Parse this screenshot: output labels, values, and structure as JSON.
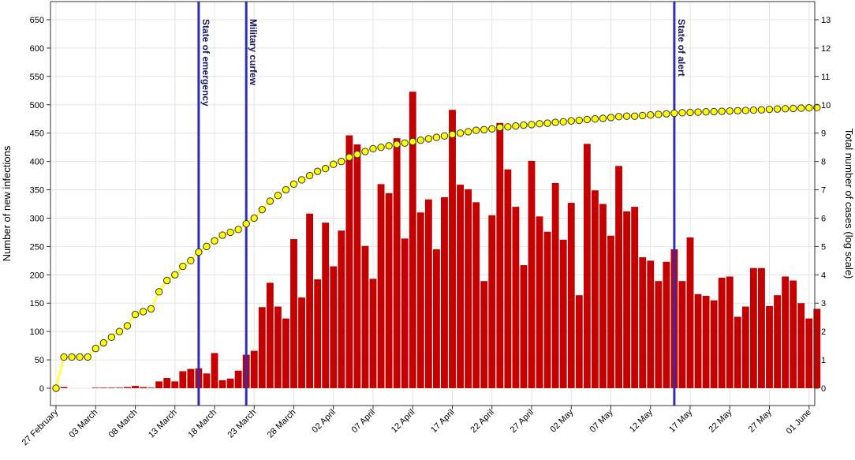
{
  "chart_data": {
    "type": "bar",
    "ylabel_left": "Number of new infections",
    "ylabel_right": "Total number of cases (log scale)",
    "ylim_left": [
      0,
      650
    ],
    "ylim_right": [
      0,
      13
    ],
    "yticks_left": [
      "0",
      "50",
      "100",
      "150",
      "200",
      "250",
      "300",
      "350",
      "400",
      "450",
      "500",
      "550",
      "600",
      "650"
    ],
    "yticks_right": [
      "0",
      "1",
      "2",
      "3",
      "4",
      "5",
      "6",
      "7",
      "8",
      "9",
      "10",
      "11",
      "12",
      "13"
    ],
    "xtick_labels": [
      "27 February",
      "03 March",
      "08 March",
      "13 March",
      "18 March",
      "23 March",
      "28 March",
      "02 April",
      "07 April",
      "12 April",
      "17 April",
      "22 April",
      "27 April",
      "02 May",
      "07 May",
      "12 May",
      "17 May",
      "22 May",
      "27 May",
      "01 June"
    ],
    "grid": true,
    "colors": {
      "bars": "#c40000",
      "cumulative_line": "#ffff4d",
      "cumulative_points": "#ffff00",
      "events": "#2e2eb8"
    },
    "events": [
      {
        "label": "State of emergency",
        "day": 18
      },
      {
        "label": "Military curfew",
        "day": 24
      },
      {
        "label": "State of alert",
        "day": 78
      }
    ],
    "series": [
      {
        "kind": "bar",
        "values": [
          0,
          2,
          0,
          0,
          0,
          1,
          1,
          1,
          1,
          2,
          4,
          2,
          1,
          12,
          18,
          12,
          30,
          34,
          35,
          26,
          62,
          14,
          17,
          31,
          59,
          66,
          143,
          186,
          144,
          123,
          263,
          160,
          308,
          192,
          292,
          215,
          278,
          446,
          430,
          251,
          193,
          360,
          344,
          441,
          264,
          523,
          310,
          333,
          245,
          337,
          491,
          359,
          351,
          328,
          189,
          305,
          468,
          386,
          320,
          217,
          401,
          303,
          276,
          362,
          262,
          327,
          164,
          431,
          349,
          325,
          269,
          392,
          312,
          320,
          231,
          225,
          189,
          223,
          245,
          189,
          266,
          166,
          163,
          155,
          195,
          197,
          126,
          144,
          212,
          212,
          145,
          164,
          197,
          190,
          150,
          123,
          140
        ]
      },
      {
        "kind": "line",
        "values": [
          0,
          1.1,
          1.1,
          1.1,
          1.1,
          1.4,
          1.6,
          1.8,
          2.0,
          2.2,
          2.6,
          2.7,
          2.8,
          3.4,
          3.8,
          4.0,
          4.3,
          4.5,
          4.8,
          5.0,
          5.2,
          5.4,
          5.5,
          5.6,
          5.8,
          6.0,
          6.3,
          6.6,
          6.8,
          7.0,
          7.2,
          7.35,
          7.5,
          7.65,
          7.75,
          7.9,
          8.0,
          8.15,
          8.25,
          8.35,
          8.45,
          8.5,
          8.55,
          8.6,
          8.65,
          8.7,
          8.75,
          8.8,
          8.85,
          8.9,
          8.95,
          9.0,
          9.05,
          9.1,
          9.12,
          9.15,
          9.2,
          9.22,
          9.25,
          9.28,
          9.3,
          9.33,
          9.35,
          9.38,
          9.4,
          9.43,
          9.45,
          9.48,
          9.5,
          9.52,
          9.55,
          9.58,
          9.6,
          9.6,
          9.62,
          9.64,
          9.66,
          9.68,
          9.7,
          9.72,
          9.73,
          9.74,
          9.75,
          9.76,
          9.77,
          9.78,
          9.79,
          9.8,
          9.81,
          9.82,
          9.84,
          9.85,
          9.86,
          9.87,
          9.88,
          9.89,
          9.9
        ]
      }
    ]
  }
}
